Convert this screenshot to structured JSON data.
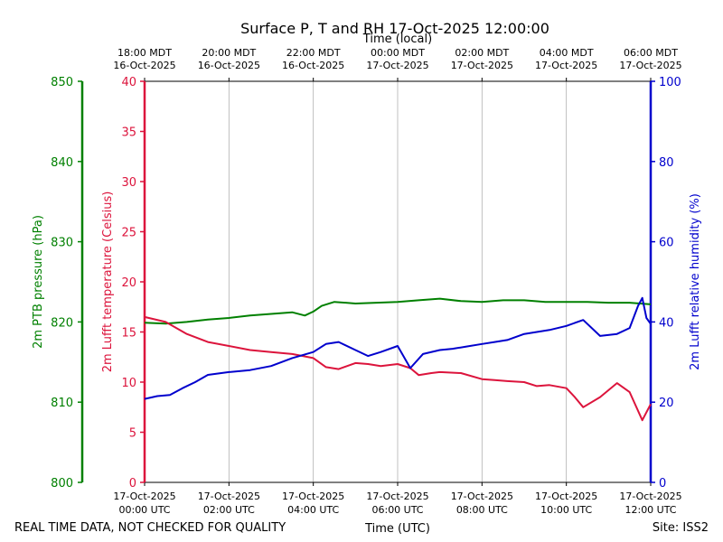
{
  "chart_data": {
    "type": "line",
    "title": "Surface P, T and RH 17-Oct-2025 12:00:00",
    "top_xlabel": "Time (local)",
    "xlabel": "Time (UTC)",
    "footer_left": "REAL TIME DATA, NOT CHECKED FOR QUALITY",
    "footer_right": "Site: ISS2",
    "xlim_hours": [
      0,
      12
    ],
    "x_ticks": [
      {
        "hour": 0,
        "utc_date": "17-Oct-2025",
        "utc_time": "00:00 UTC",
        "local_time": "18:00 MDT",
        "local_date": "16-Oct-2025"
      },
      {
        "hour": 2,
        "utc_date": "17-Oct-2025",
        "utc_time": "02:00 UTC",
        "local_time": "20:00 MDT",
        "local_date": "16-Oct-2025"
      },
      {
        "hour": 4,
        "utc_date": "17-Oct-2025",
        "utc_time": "04:00 UTC",
        "local_time": "22:00 MDT",
        "local_date": "16-Oct-2025"
      },
      {
        "hour": 6,
        "utc_date": "17-Oct-2025",
        "utc_time": "06:00 UTC",
        "local_time": "00:00 MDT",
        "local_date": "17-Oct-2025"
      },
      {
        "hour": 8,
        "utc_date": "17-Oct-2025",
        "utc_time": "08:00 UTC",
        "local_time": "02:00 MDT",
        "local_date": "17-Oct-2025"
      },
      {
        "hour": 10,
        "utc_date": "17-Oct-2025",
        "utc_time": "10:00 UTC",
        "local_time": "04:00 MDT",
        "local_date": "17-Oct-2025"
      },
      {
        "hour": 12,
        "utc_date": "17-Oct-2025",
        "utc_time": "12:00 UTC",
        "local_time": "06:00 MDT",
        "local_date": "17-Oct-2025"
      }
    ],
    "grid": "vertical",
    "axes": {
      "pressure": {
        "label": "2m PTB pressure (hPa)",
        "ylim": [
          800,
          850
        ],
        "ticks": [
          800,
          810,
          820,
          830,
          840,
          850
        ],
        "color": "#008000"
      },
      "temperature": {
        "label": "2m Lufft temperature (Celsius)",
        "ylim": [
          0,
          40
        ],
        "ticks": [
          0,
          5,
          10,
          15,
          20,
          25,
          30,
          35,
          40
        ],
        "color": "#dc143c"
      },
      "humidity": {
        "label": "2m Lufft relative humidity (%)",
        "ylim": [
          0,
          100
        ],
        "ticks": [
          0,
          20,
          40,
          60,
          80,
          100
        ],
        "color": "#0000cd"
      }
    },
    "series": [
      {
        "axis": "pressure",
        "color": "#008000",
        "x": [
          0,
          0.5,
          1,
          1.5,
          2,
          2.5,
          3,
          3.5,
          3.8,
          4,
          4.2,
          4.5,
          5,
          5.5,
          6,
          6.5,
          7,
          7.5,
          8,
          8.5,
          9,
          9.5,
          10,
          10.5,
          11,
          11.5,
          12
        ],
        "y": [
          819.9,
          819.8,
          820.0,
          820.3,
          820.5,
          820.8,
          821.0,
          821.2,
          820.8,
          821.3,
          822.0,
          822.5,
          822.3,
          822.4,
          822.5,
          822.7,
          822.9,
          822.6,
          822.5,
          822.7,
          822.7,
          822.5,
          822.5,
          822.5,
          822.4,
          822.4,
          822.2
        ]
      },
      {
        "axis": "temperature",
        "color": "#dc143c",
        "x": [
          0,
          0.5,
          1,
          1.5,
          2,
          2.5,
          3,
          3.5,
          4,
          4.3,
          4.6,
          5,
          5.3,
          5.6,
          6,
          6.3,
          6.5,
          6.8,
          7,
          7.5,
          8,
          8.3,
          8.6,
          9,
          9.3,
          9.6,
          10,
          10.2,
          10.4,
          10.8,
          11.2,
          11.5,
          11.8,
          12
        ],
        "y": [
          16.5,
          16.0,
          14.8,
          14.0,
          13.6,
          13.2,
          13.0,
          12.8,
          12.4,
          11.5,
          11.3,
          11.9,
          11.8,
          11.6,
          11.8,
          11.4,
          10.7,
          10.9,
          11.0,
          10.9,
          10.3,
          10.2,
          10.1,
          10.0,
          9.6,
          9.7,
          9.4,
          8.5,
          7.5,
          8.5,
          9.9,
          9.0,
          6.2,
          7.8
        ]
      },
      {
        "axis": "humidity",
        "color": "#0000cd",
        "x": [
          0,
          0.3,
          0.6,
          0.9,
          1.2,
          1.5,
          2,
          2.5,
          3,
          3.5,
          4,
          4.3,
          4.6,
          5,
          5.3,
          5.6,
          6,
          6.3,
          6.6,
          7,
          7.3,
          7.6,
          8,
          8.3,
          8.6,
          9,
          9.3,
          9.6,
          10,
          10.4,
          10.8,
          11.2,
          11.5,
          11.7,
          11.8,
          11.9,
          12
        ],
        "y": [
          20.8,
          21.5,
          21.8,
          23.5,
          25.0,
          26.8,
          27.5,
          28.0,
          29.0,
          31.0,
          32.5,
          34.5,
          35.0,
          33.0,
          31.5,
          32.5,
          34.0,
          28.5,
          32.0,
          33.0,
          33.3,
          33.8,
          34.5,
          35.0,
          35.5,
          37.0,
          37.5,
          38.0,
          39.0,
          40.5,
          36.5,
          37.0,
          38.5,
          44.0,
          46.0,
          41.0,
          39.5
        ]
      }
    ]
  }
}
